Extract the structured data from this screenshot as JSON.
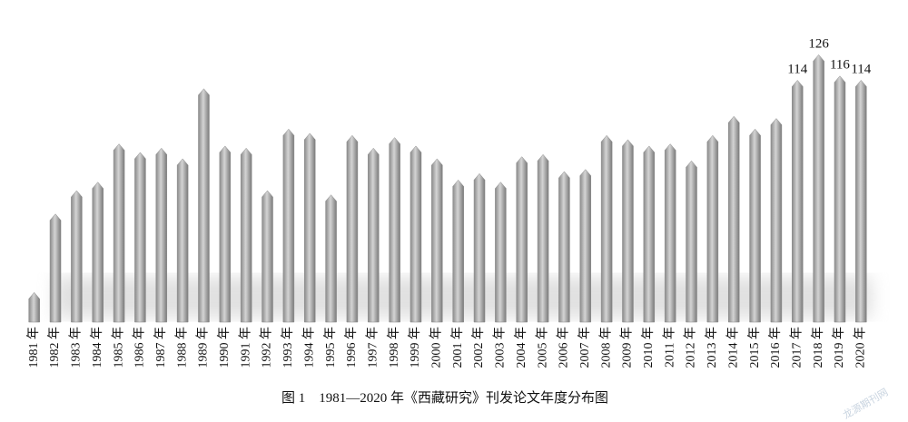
{
  "chart_data": {
    "type": "bar",
    "title": "图 1　1981—2020 年《西藏研究》刊发论文年度分布图",
    "watermark": "龙源期刊网",
    "categories": [
      "1981 年",
      "1982 年",
      "1983 年",
      "1984 年",
      "1985 年",
      "1986 年",
      "1987 年",
      "1988 年",
      "1989 年",
      "1990 年",
      "1991 年",
      "1992 年",
      "1993 年",
      "1994 年",
      "1995 年",
      "1996 年",
      "1997 年",
      "1998 年",
      "1999 年",
      "2000 年",
      "2001 年",
      "2002 年",
      "2003 年",
      "2004 年",
      "2005 年",
      "2006 年",
      "2007 年",
      "2008 年",
      "2009 年",
      "2010 年",
      "2011 年",
      "2012 年",
      "2013 年",
      "2014 年",
      "2015 年",
      "2016 年",
      "2017 年",
      "2018 年",
      "2019 年",
      "2020 年"
    ],
    "values": [
      14,
      51,
      62,
      66,
      84,
      80,
      82,
      77,
      110,
      83,
      82,
      62,
      91,
      89,
      60,
      88,
      82,
      87,
      83,
      77,
      67,
      70,
      66,
      78,
      79,
      71,
      72,
      88,
      86,
      83,
      84,
      76,
      88,
      97,
      91,
      96,
      114,
      126,
      116,
      114
    ],
    "value_labels": [
      null,
      null,
      null,
      null,
      null,
      null,
      null,
      null,
      null,
      null,
      null,
      null,
      null,
      null,
      null,
      null,
      null,
      null,
      null,
      null,
      null,
      null,
      null,
      null,
      null,
      null,
      null,
      null,
      null,
      null,
      null,
      null,
      null,
      null,
      null,
      null,
      "114",
      "126",
      "116",
      "114"
    ],
    "color": "#a6a6a6",
    "ylim": [
      0,
      130
    ]
  }
}
